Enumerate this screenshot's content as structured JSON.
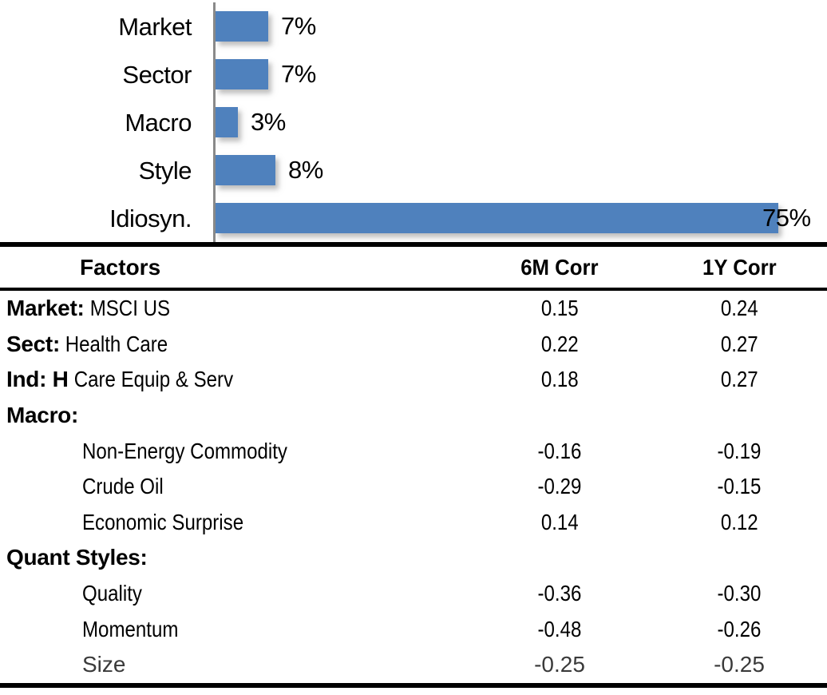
{
  "chart_data": {
    "type": "bar",
    "orientation": "horizontal",
    "title": "",
    "categories": [
      "Market",
      "Sector",
      "Macro",
      "Style",
      "Idiosyn."
    ],
    "values": [
      7,
      7,
      3,
      8,
      75
    ],
    "value_labels": [
      "7%",
      "7%",
      "3%",
      "8%",
      "75%"
    ],
    "xlim": [
      0,
      80
    ],
    "grid": false,
    "legend": false,
    "bar_color": "#4F81BD",
    "axis_color": "#8a8a8a",
    "label_color": "#000000"
  },
  "table": {
    "columns": [
      "Factors",
      "6M Corr",
      "1Y Corr"
    ],
    "rows": [
      {
        "prefix": "Market:",
        "rest": " MSCI US",
        "indent": false,
        "corr6m": "0.15",
        "corr1y": "0.24",
        "muted": false
      },
      {
        "prefix": "Sect:",
        "rest": " Health Care",
        "indent": false,
        "corr6m": "0.22",
        "corr1y": "0.27",
        "muted": false
      },
      {
        "prefix": "Ind: H",
        "rest": " Care Equip & Serv",
        "indent": false,
        "corr6m": "0.18",
        "corr1y": "0.27",
        "muted": false
      },
      {
        "prefix": "Macro:",
        "rest": "",
        "indent": false,
        "corr6m": "",
        "corr1y": "",
        "muted": false
      },
      {
        "prefix": "",
        "rest": "Non-Energy Commodity",
        "indent": true,
        "corr6m": "-0.16",
        "corr1y": "-0.19",
        "muted": false
      },
      {
        "prefix": "",
        "rest": "Crude Oil",
        "indent": true,
        "corr6m": "-0.29",
        "corr1y": "-0.15",
        "muted": false
      },
      {
        "prefix": "",
        "rest": "Economic Surprise",
        "indent": true,
        "corr6m": "0.14",
        "corr1y": "0.12",
        "muted": false
      },
      {
        "prefix": "Quant Styles:",
        "rest": "",
        "indent": false,
        "corr6m": "",
        "corr1y": "",
        "muted": false
      },
      {
        "prefix": "",
        "rest": "Quality",
        "indent": true,
        "corr6m": "-0.36",
        "corr1y": "-0.30",
        "muted": false
      },
      {
        "prefix": "",
        "rest": "Momentum",
        "indent": true,
        "corr6m": "-0.48",
        "corr1y": "-0.26",
        "muted": false
      },
      {
        "prefix": "",
        "rest": "Size",
        "indent": true,
        "corr6m": "-0.25",
        "corr1y": "-0.25",
        "muted": true
      }
    ]
  }
}
